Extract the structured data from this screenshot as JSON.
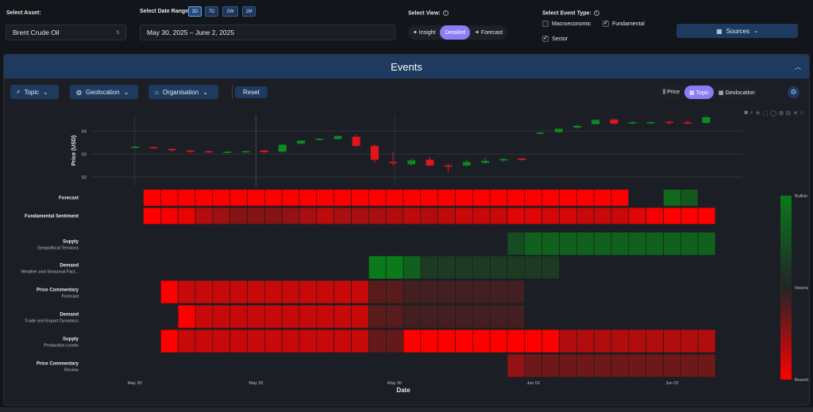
{
  "filters": {
    "asset_label": "Select Asset:",
    "asset_value": "Brent Crude Oil",
    "date_label": "Select Date Range:",
    "date_value": "May 30, 2025 – June 2, 2025",
    "ranges": [
      "3D",
      "7D",
      "2W",
      "1M"
    ],
    "active_range": "3D",
    "view_label": "Select View:",
    "views": [
      "Insight",
      "Detailed",
      "Forecast"
    ],
    "active_view": "Detailed",
    "event_label": "Select Event Type:",
    "event_types": [
      {
        "label": "Macroeconomic",
        "checked": false
      },
      {
        "label": "Fundamental",
        "checked": true
      },
      {
        "label": "Sector",
        "checked": true
      }
    ],
    "sources_label": "Sources"
  },
  "events": {
    "title": "Events",
    "filter_buttons": [
      "Topic",
      "Geolocation",
      "Organisation"
    ],
    "reset_label": "Reset",
    "view_toggle": [
      "Price",
      "Topic",
      "Geolocation"
    ],
    "active_toggle": "Topic"
  },
  "chart_data": {
    "type": "heatmap",
    "price_panel": {
      "type": "candlestick",
      "ylabel": "Price (USD)",
      "yticks": [
        62,
        63,
        64
      ],
      "ylim": [
        61.6,
        64.7
      ],
      "ohlc": [
        {
          "o": 63.3,
          "h": 63.35,
          "l": 63.25,
          "c": 63.32
        },
        {
          "o": 63.3,
          "h": 63.33,
          "l": 63.2,
          "c": 63.25
        },
        {
          "o": 63.22,
          "h": 63.25,
          "l": 63.08,
          "c": 63.18
        },
        {
          "o": 63.15,
          "h": 63.18,
          "l": 63.05,
          "c": 63.1
        },
        {
          "o": 63.12,
          "h": 63.15,
          "l": 63.05,
          "c": 63.08
        },
        {
          "o": 63.08,
          "h": 63.12,
          "l": 63.05,
          "c": 63.1
        },
        {
          "o": 63.1,
          "h": 63.15,
          "l": 63.08,
          "c": 63.12
        },
        {
          "o": 63.15,
          "h": 63.18,
          "l": 63.02,
          "c": 63.08
        },
        {
          "o": 63.1,
          "h": 63.45,
          "l": 63.05,
          "c": 63.4
        },
        {
          "o": 63.45,
          "h": 63.6,
          "l": 63.42,
          "c": 63.58
        },
        {
          "o": 63.62,
          "h": 63.7,
          "l": 63.58,
          "c": 63.66
        },
        {
          "o": 63.65,
          "h": 63.8,
          "l": 63.62,
          "c": 63.78
        },
        {
          "o": 63.75,
          "h": 63.85,
          "l": 63.3,
          "c": 63.35
        },
        {
          "o": 63.35,
          "h": 63.42,
          "l": 62.6,
          "c": 62.75
        },
        {
          "o": 62.65,
          "h": 63.1,
          "l": 62.5,
          "c": 62.6
        },
        {
          "o": 62.55,
          "h": 62.8,
          "l": 62.5,
          "c": 62.72
        },
        {
          "o": 62.75,
          "h": 62.85,
          "l": 62.45,
          "c": 62.5
        },
        {
          "o": 62.5,
          "h": 62.58,
          "l": 62.2,
          "c": 62.48
        },
        {
          "o": 62.5,
          "h": 62.75,
          "l": 62.45,
          "c": 62.65
        },
        {
          "o": 62.62,
          "h": 62.82,
          "l": 62.55,
          "c": 62.7
        },
        {
          "o": 62.72,
          "h": 62.82,
          "l": 62.65,
          "c": 62.78
        },
        {
          "o": 62.8,
          "h": 62.84,
          "l": 62.68,
          "c": 62.74
        },
        {
          "o": 63.88,
          "h": 63.96,
          "l": 63.84,
          "c": 63.93
        },
        {
          "o": 63.95,
          "h": 64.12,
          "l": 63.92,
          "c": 64.1
        },
        {
          "o": 64.15,
          "h": 64.28,
          "l": 64.1,
          "c": 64.22
        },
        {
          "o": 64.3,
          "h": 64.5,
          "l": 64.28,
          "c": 64.48
        },
        {
          "o": 64.5,
          "h": 64.55,
          "l": 64.25,
          "c": 64.32
        },
        {
          "o": 64.35,
          "h": 64.42,
          "l": 64.3,
          "c": 64.38
        },
        {
          "o": 64.34,
          "h": 64.4,
          "l": 64.3,
          "c": 64.38
        },
        {
          "o": 64.4,
          "h": 64.45,
          "l": 64.28,
          "c": 64.36
        },
        {
          "o": 64.38,
          "h": 64.46,
          "l": 64.28,
          "c": 64.34
        },
        {
          "o": 64.35,
          "h": 64.65,
          "l": 64.32,
          "c": 64.6
        }
      ]
    },
    "rows": [
      {
        "title": "Forecast",
        "subtitle": "",
        "values": [
          null,
          null,
          null,
          -1,
          -1,
          -1,
          -1,
          -1,
          -1,
          -1,
          -1,
          -1,
          -1,
          -1,
          -1,
          -1,
          -1,
          -1,
          -1,
          -1,
          -1,
          -1,
          -1,
          -1,
          -1,
          -1,
          -1,
          -1,
          -1,
          -1,
          -1,
          null,
          null,
          0.8,
          0.6,
          null
        ]
      },
      {
        "title": "Fundamental Sentiment",
        "subtitle": "",
        "values": [
          null,
          null,
          null,
          -1,
          -0.95,
          -0.9,
          -0.65,
          -0.55,
          -0.45,
          -0.45,
          -0.45,
          -0.5,
          -0.6,
          -0.7,
          -0.6,
          -0.6,
          -0.6,
          -0.65,
          -0.7,
          -0.65,
          -0.7,
          -0.75,
          -0.75,
          -0.75,
          -0.85,
          -0.85,
          -0.8,
          -0.8,
          -0.75,
          -0.75,
          -0.75,
          -0.85,
          -0.95,
          -1,
          -1,
          -1
        ]
      },
      {
        "title": "Supply",
        "subtitle": "Geopolitical Tensions",
        "values": [
          null,
          null,
          null,
          null,
          null,
          null,
          null,
          null,
          null,
          null,
          null,
          null,
          null,
          null,
          null,
          null,
          null,
          null,
          null,
          null,
          null,
          null,
          null,
          null,
          0.45,
          0.7,
          0.7,
          0.7,
          0.7,
          0.7,
          0.7,
          0.7,
          0.7,
          0.7,
          0.7,
          0.7
        ]
      },
      {
        "title": "Demand",
        "subtitle": "Weather and Seasonal Fact...",
        "values": [
          null,
          null,
          null,
          null,
          null,
          null,
          null,
          null,
          null,
          null,
          null,
          null,
          null,
          null,
          null,
          null,
          1,
          1,
          0.7,
          0.25,
          0.25,
          0.25,
          0.25,
          0.25,
          0.25,
          0.25,
          0.25,
          null,
          null,
          null,
          null,
          null,
          null,
          null,
          null,
          null
        ]
      },
      {
        "title": "Price Commentary",
        "subtitle": "Forecast",
        "values": [
          null,
          null,
          null,
          null,
          -1,
          -0.75,
          -0.75,
          -0.75,
          -0.75,
          -0.75,
          -0.75,
          -0.75,
          -0.75,
          -0.75,
          -0.75,
          -0.75,
          -0.25,
          -0.25,
          -0.15,
          -0.15,
          -0.15,
          -0.15,
          -0.15,
          -0.15,
          -0.15,
          null,
          null,
          null,
          null,
          null,
          null,
          null,
          null,
          null,
          null,
          null
        ]
      },
      {
        "title": "Demand",
        "subtitle": "Trade and Export Dynamics",
        "values": [
          null,
          null,
          null,
          null,
          null,
          -1,
          -0.75,
          -0.75,
          -0.75,
          -0.75,
          -0.75,
          -0.75,
          -0.75,
          -0.75,
          -0.75,
          -0.75,
          -0.25,
          -0.25,
          -0.15,
          -0.15,
          -0.15,
          -0.15,
          -0.15,
          -0.15,
          -0.15,
          null,
          null,
          null,
          null,
          null,
          null,
          null,
          null,
          null,
          null,
          null
        ]
      },
      {
        "title": "Supply",
        "subtitle": "Production Levels",
        "values": [
          null,
          null,
          null,
          null,
          -1,
          -0.75,
          -0.75,
          -0.75,
          -0.75,
          -0.75,
          -0.75,
          -0.75,
          -0.75,
          -0.75,
          -0.75,
          -0.75,
          -0.3,
          -0.3,
          -1,
          -1,
          -1,
          -1,
          -1,
          -1,
          -1,
          -1,
          -1,
          -0.65,
          -0.65,
          -0.65,
          -0.65,
          -0.65,
          -0.65,
          -0.65,
          -0.65,
          -0.65
        ]
      },
      {
        "title": "Price Commentary",
        "subtitle": "Review",
        "values": [
          null,
          null,
          null,
          null,
          null,
          null,
          null,
          null,
          null,
          null,
          null,
          null,
          null,
          null,
          null,
          null,
          null,
          null,
          null,
          null,
          null,
          null,
          null,
          null,
          -0.5,
          -0.35,
          -0.35,
          -0.35,
          -0.35,
          -0.35,
          -0.35,
          -0.35,
          -0.35,
          -0.35,
          -0.35,
          -0.35
        ]
      }
    ],
    "xticks": [
      {
        "col": 2,
        "label": "May 30"
      },
      {
        "col": 9,
        "label": "May 30"
      },
      {
        "col": 17,
        "label": "May 30"
      },
      {
        "col": 25,
        "label": "Jun 02"
      },
      {
        "col": 33,
        "label": "Jun 02"
      }
    ],
    "xlabel": "Date",
    "colorbar": {
      "top": "Bullish",
      "mid": "Neutral",
      "bottom": "Bearish"
    },
    "colors": {
      "bull": "#0a7a1a",
      "neutral": "#222527",
      "bear": "#ff0000"
    }
  }
}
